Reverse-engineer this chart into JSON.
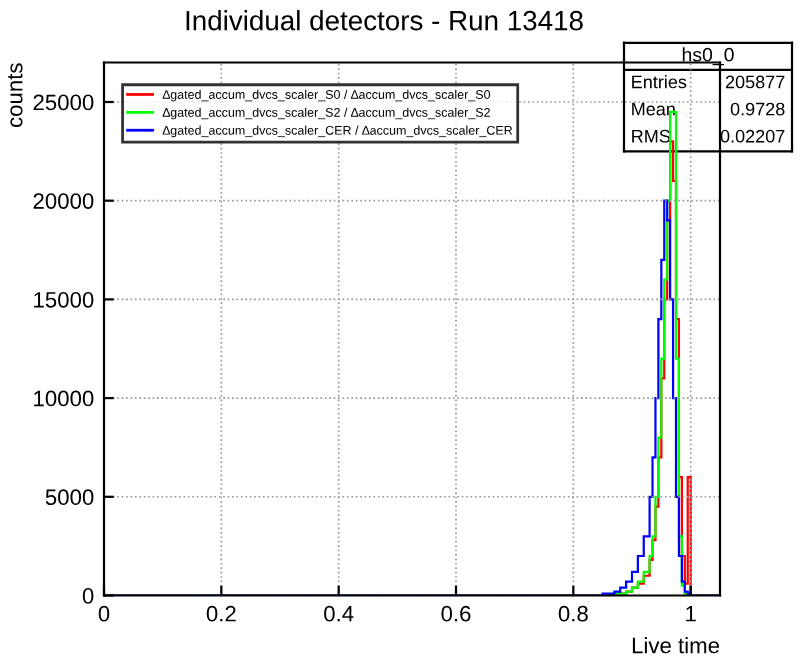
{
  "chart_data": {
    "type": "histogram",
    "title": "Individual detectors - Run 13418",
    "xlabel": "Live time",
    "ylabel": "counts",
    "bins": [
      0,
      0.85,
      0.86,
      0.87,
      0.88,
      0.89,
      0.9,
      0.91,
      0.92,
      0.93,
      0.935,
      0.94,
      0.945,
      0.95,
      0.955,
      0.96,
      0.965,
      0.97,
      0.975,
      0.98,
      0.985,
      0.99,
      0.995,
      1.0,
      1.05
    ],
    "series": [
      {
        "name": "∆gated_accum_dvcs_scaler_S0 / ∆accum_dvcs_scaler_S0",
        "color": "#ff0000",
        "values": [
          0,
          0,
          0,
          100,
          100,
          200,
          400,
          600,
          1000,
          1800,
          2800,
          4500,
          7000,
          11000,
          15000,
          19000,
          23000,
          21000,
          14000,
          6000,
          2000,
          600,
          6000,
          0
        ]
      },
      {
        "name": "∆gated_accum_dvcs_scaler_S2 / ∆accum_dvcs_scaler_S2",
        "color": "#00ff00",
        "values": [
          0,
          0,
          0,
          100,
          100,
          200,
          400,
          700,
          1200,
          2000,
          3000,
          5000,
          8000,
          12000,
          16000,
          20000,
          24500,
          24500,
          12000,
          3000,
          500,
          100,
          0,
          0
        ]
      },
      {
        "name": "∆gated_accum_dvcs_scaler_CER / ∆accum_dvcs_scaler_CER",
        "color": "#0000ff",
        "values": [
          0,
          100,
          100,
          200,
          400,
          700,
          1200,
          2000,
          3000,
          5000,
          7000,
          10000,
          14000,
          17000,
          20000,
          19000,
          15000,
          10000,
          5000,
          2000,
          700,
          200,
          100,
          0
        ]
      }
    ],
    "xlim": [
      0,
      1.05
    ],
    "ylim": [
      0,
      27000
    ],
    "xticks": [
      0,
      0.2,
      0.4,
      0.6,
      0.8,
      1
    ],
    "yticks": [
      0,
      5000,
      10000,
      15000,
      20000,
      25000
    ],
    "grid": true,
    "legend": "top left",
    "annotations": [
      "hs0_0",
      "Entries",
      "205877",
      "Mean",
      "0.9728",
      "RMS",
      "0.02207"
    ]
  }
}
